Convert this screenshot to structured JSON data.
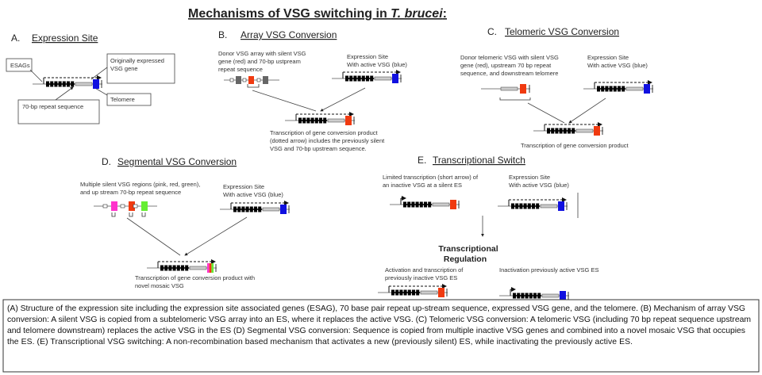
{
  "title": {
    "main": "Mechanisms of VSG switching in ",
    "species": "T. brucei",
    "suffix": ":"
  },
  "colors": {
    "active_vsg": "#1010e0",
    "silent_vsg": "#f03a10",
    "pink": "#ff33cc",
    "green": "#66ee33",
    "esag": "#000000",
    "repeat": "#cccccc",
    "donor_gray": "#666666"
  },
  "panels": {
    "a": {
      "letter": "A.",
      "title": "Expression Site",
      "esags": "ESAGs",
      "vsg_gene": [
        "Originally expressed",
        "VSG gene"
      ],
      "telomere": "Telomere",
      "repeat": "70-bp repeat  sequence"
    },
    "b": {
      "letter": "B.",
      "title": "Array VSG Conversion",
      "donor": [
        "Donor VSG array with silent VSG",
        "gene (red) and 70-bp ustpream",
        "repeat sequence"
      ],
      "es": [
        "Expression Site",
        "With active VSG (blue)"
      ],
      "product": [
        "Transcription of gene conversion product",
        "(dotted arrow) includes the previously silent",
        "VSG and 70-bp upstream sequence."
      ]
    },
    "c": {
      "letter": "C.",
      "title": "Telomeric VSG Conversion",
      "donor": [
        "Donor telomeric VSG with silent VSG",
        "gene (red), upstream 70 bp repeat",
        "sequence, and downstream telomere"
      ],
      "es": [
        "Expression Site",
        "With active VSG (blue)"
      ],
      "product": [
        "Transcription of gene conversion product"
      ]
    },
    "d": {
      "letter": "D.",
      "title": "Segmental VSG Conversion",
      "donor": [
        "Multiple silent VSG regions (pink, red, green),",
        "and up stream 70-bp repeat sequence"
      ],
      "es": [
        "Expression Site",
        "With active VSG (blue)"
      ],
      "product": [
        "Transcription of gene conversion product with",
        "novel mosaic VSG"
      ]
    },
    "e": {
      "letter": "E.",
      "title": "Transcriptional Switch",
      "silent": [
        "Limited transcription (short arrow) of",
        "an inactive VSG at a silent ES"
      ],
      "es": [
        "Expression Site",
        "With active VSG (blue)"
      ],
      "regulation": [
        "Transcriptional",
        "Regulation"
      ],
      "activation": [
        "Activation and transcription of",
        "previously inactive VSG ES"
      ],
      "inactivation": [
        "Inactivation previously active VSG ES"
      ]
    }
  },
  "caption": [
    "(A) Structure of the expression site including the expression site associated genes (ESAG), 70 base pair repeat up-stream sequence, expressed VSG gene, and the telomere.  (B) Mechanism of array VSG",
    "conversion:  A silent VSG is copied from a subtelomeric VSG array into an ES, where it replaces the active VSG.  (C) Telomeric VSG conversion:  A telomeric VSG (including 70 bp repeat sequence upstream",
    "and telomere downstream) replaces the active VSG in the ES (D) Segmental VSG conversion:  Sequence is copied from multiple inactive VSG genes and combined into a novel mosaic VSG that occupies",
    "the ES.    (E) Transcriptional VSG switching:  A non-recombination based mechanism that activates a new (previously silent) ES, while inactivating the previously active ES."
  ]
}
